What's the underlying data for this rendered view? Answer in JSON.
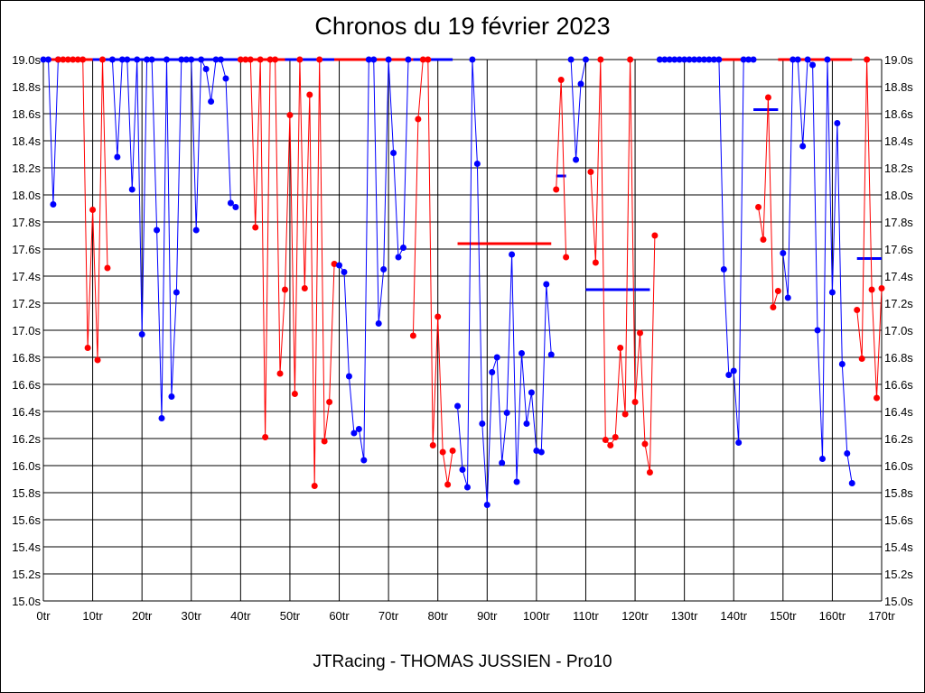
{
  "chart_data": {
    "type": "line",
    "title": "Chronos du 19 février 2023",
    "subtitle": "JTRacing - THOMAS JUSSIEN - Pro10",
    "xlim": [
      0,
      170
    ],
    "ylim": [
      15.0,
      19.0
    ],
    "grid": true,
    "x_ticks": [
      "0tr",
      "10tr",
      "20tr",
      "30tr",
      "40tr",
      "50tr",
      "60tr",
      "70tr",
      "80tr",
      "90tr",
      "100tr",
      "110tr",
      "120tr",
      "130tr",
      "140tr",
      "150tr",
      "160tr",
      "170tr"
    ],
    "y_ticks": [
      "19.0s",
      "18.8s",
      "18.6s",
      "18.4s",
      "18.2s",
      "18.0s",
      "17.8s",
      "17.6s",
      "17.4s",
      "17.2s",
      "17.0s",
      "16.8s",
      "16.6s",
      "16.4s",
      "16.2s",
      "16.0s",
      "15.8s",
      "15.6s",
      "15.4s",
      "15.2s",
      "15.0s"
    ],
    "series": [
      {
        "color": "#0000ff",
        "x": [
          0,
          1,
          2,
          3
        ],
        "y": [
          19.0,
          19.0,
          17.93,
          19.0
        ]
      },
      {
        "color": "#ff0000",
        "x": [
          3,
          4,
          5,
          6,
          7,
          8,
          9,
          10,
          11,
          12,
          13
        ],
        "y": [
          19.0,
          19.0,
          19.0,
          19.0,
          19.0,
          19.0,
          16.87,
          17.89,
          16.78,
          19.0,
          17.46
        ]
      },
      {
        "color": "#0000ff",
        "x": [
          14,
          15,
          16,
          17,
          18,
          19,
          20,
          21,
          22,
          23,
          24,
          25,
          26,
          27,
          28,
          29,
          30,
          31,
          32,
          33,
          34,
          35,
          36,
          37,
          38,
          39
        ],
        "y": [
          19.0,
          18.28,
          19.0,
          19.0,
          18.04,
          19.0,
          16.97,
          19.0,
          19.0,
          17.74,
          16.35,
          19.0,
          16.51,
          17.28,
          19.0,
          19.0,
          19.0,
          17.74,
          19.0,
          18.93,
          18.69,
          19.0,
          19.0,
          18.86,
          17.94,
          17.91
        ]
      },
      {
        "color": "#ff0000",
        "x": [
          40,
          41,
          42,
          43,
          44,
          45,
          46,
          47,
          48,
          49,
          50,
          51,
          52,
          53,
          54,
          55,
          56,
          57,
          58,
          59
        ],
        "y": [
          19.0,
          19.0,
          19.0,
          17.76,
          19.0,
          16.21,
          19.0,
          19.0,
          16.68,
          17.3,
          18.59,
          16.53,
          19.0,
          17.31,
          18.74,
          15.85,
          19.0,
          16.18,
          16.47,
          17.49
        ]
      },
      {
        "color": "#0000ff",
        "x": [
          60,
          61,
          62,
          63,
          64,
          65,
          66,
          67,
          68,
          69,
          70,
          71,
          72,
          73,
          74
        ],
        "y": [
          17.48,
          17.43,
          16.66,
          16.24,
          16.27,
          16.04,
          19.0,
          19.0,
          17.05,
          17.45,
          19.0,
          18.31,
          17.54,
          17.61,
          19.0
        ]
      },
      {
        "color": "#ff0000",
        "x": [
          75,
          76,
          77,
          78,
          79,
          80,
          81,
          82,
          83
        ],
        "y": [
          16.96,
          18.56,
          19.0,
          19.0,
          16.15,
          17.1,
          16.1,
          15.86,
          16.11
        ]
      },
      {
        "color": "#0000ff",
        "x": [
          84,
          85,
          86,
          87,
          88,
          89,
          90,
          91,
          92,
          93,
          94,
          95,
          96,
          97,
          98,
          99,
          100,
          101,
          102,
          103
        ],
        "y": [
          16.44,
          15.97,
          15.84,
          19.0,
          18.23,
          16.31,
          15.71,
          16.69,
          16.8,
          16.02,
          16.39,
          17.56,
          15.88,
          16.83,
          16.31,
          16.54,
          16.11,
          16.1,
          17.34,
          16.82
        ]
      },
      {
        "color": "#ff0000",
        "x": [
          104,
          105,
          106
        ],
        "y": [
          18.04,
          18.85,
          17.54
        ]
      },
      {
        "color": "#0000ff",
        "x": [
          107,
          108,
          109,
          110
        ],
        "y": [
          19.0,
          18.26,
          18.82,
          19.0
        ]
      },
      {
        "color": "#ff0000",
        "x": [
          111,
          112,
          113,
          114,
          115,
          116,
          117,
          118,
          119,
          120,
          121,
          122,
          123,
          124
        ],
        "y": [
          18.17,
          17.5,
          19.0,
          16.19,
          16.15,
          16.21,
          16.87,
          16.38,
          19.0,
          16.47,
          16.98,
          16.16,
          15.95,
          17.7
        ]
      },
      {
        "color": "#0000ff",
        "x": [
          125,
          126,
          127,
          128,
          129,
          130,
          131,
          132,
          133,
          134,
          135,
          136,
          137,
          138,
          139,
          140,
          141,
          142,
          143,
          144
        ],
        "y": [
          19.0,
          19.0,
          19.0,
          19.0,
          19.0,
          19.0,
          19.0,
          19.0,
          19.0,
          19.0,
          19.0,
          19.0,
          19.0,
          17.45,
          16.67,
          16.7,
          16.17,
          19.0,
          19.0,
          19.0
        ]
      },
      {
        "color": "#ff0000",
        "x": [
          145,
          146,
          147,
          148,
          149
        ],
        "y": [
          17.91,
          17.67,
          18.72,
          17.17,
          17.29
        ]
      },
      {
        "color": "#0000ff",
        "x": [
          150,
          151,
          152,
          153,
          154,
          155,
          156,
          157,
          158,
          159,
          160,
          161,
          162,
          163,
          164
        ],
        "y": [
          17.57,
          17.24,
          19.0,
          19.0,
          18.36,
          19.0,
          18.96,
          17.0,
          16.05,
          19.0,
          17.28,
          18.53,
          16.75,
          16.09,
          15.87
        ]
      },
      {
        "color": "#ff0000",
        "x": [
          165,
          166,
          167,
          168,
          169,
          170
        ],
        "y": [
          17.15,
          16.79,
          19.0,
          17.3,
          16.5,
          17.31
        ]
      }
    ],
    "reference_lines": [
      {
        "color": "#ff0000",
        "x": [
          0,
          10
        ],
        "y": 19.0
      },
      {
        "color": "#0000ff",
        "x": [
          10,
          40
        ],
        "y": 19.0
      },
      {
        "color": "#ff0000",
        "x": [
          40,
          49
        ],
        "y": 19.0
      },
      {
        "color": "#0000ff",
        "x": [
          49,
          59
        ],
        "y": 19.0
      },
      {
        "color": "#ff0000",
        "x": [
          59,
          75
        ],
        "y": 19.0
      },
      {
        "color": "#0000ff",
        "x": [
          75,
          83
        ],
        "y": 19.0
      },
      {
        "color": "#ff0000",
        "x": [
          84,
          103
        ],
        "y": 17.64
      },
      {
        "color": "#0000ff",
        "x": [
          104,
          106
        ],
        "y": 18.14
      },
      {
        "color": "#0000ff",
        "x": [
          110,
          123
        ],
        "y": 17.3
      },
      {
        "color": "#ff0000",
        "x": [
          137,
          144
        ],
        "y": 19.0
      },
      {
        "color": "#0000ff",
        "x": [
          144,
          149
        ],
        "y": 18.63
      },
      {
        "color": "#ff0000",
        "x": [
          149,
          164
        ],
        "y": 19.0
      },
      {
        "color": "#0000ff",
        "x": [
          165,
          170
        ],
        "y": 17.53
      }
    ]
  }
}
